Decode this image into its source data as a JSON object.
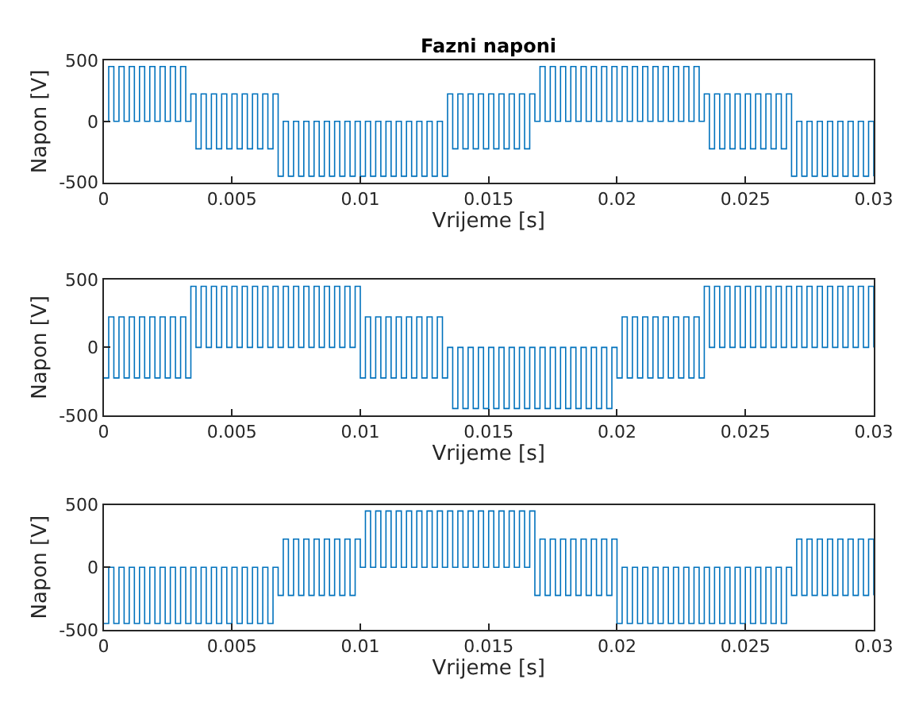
{
  "chart_data": [
    {
      "type": "step",
      "title": "Fazni naponi",
      "xlabel": "Vrijeme [s]",
      "ylabel": "Napon [V]",
      "xlim": [
        0,
        0.03
      ],
      "xticks": [
        0,
        0.005,
        0.01,
        0.015,
        0.02,
        0.025,
        0.03
      ],
      "ylim": [
        -500,
        500
      ],
      "yticks": [
        -500,
        0,
        500
      ],
      "x": [
        0,
        0.0002,
        0.0004,
        0.0006,
        0.0008,
        0.001,
        0.0012,
        0.0014,
        0.0016,
        0.0018,
        0.002,
        0.0022,
        0.0024,
        0.0026,
        0.0028,
        0.003,
        0.0032,
        0.0034,
        0.0036,
        0.0038,
        0.004,
        0.0042,
        0.0044,
        0.0046,
        0.0048,
        0.005,
        0.0052,
        0.0054,
        0.0056,
        0.0058,
        0.006,
        0.0062,
        0.0064,
        0.0066,
        0.0068,
        0.007,
        0.0072,
        0.0074,
        0.0076,
        0.0078,
        0.008,
        0.0082,
        0.0084,
        0.0086,
        0.0088,
        0.009,
        0.0092,
        0.0094,
        0.0096,
        0.0098,
        0.01,
        0.0102,
        0.0104,
        0.0106,
        0.0108,
        0.011,
        0.0112,
        0.0114,
        0.0116,
        0.0118,
        0.012,
        0.0122,
        0.0124,
        0.0126,
        0.0128,
        0.013,
        0.0132,
        0.0134,
        0.0136,
        0.0138,
        0.014,
        0.0142,
        0.0144,
        0.0146,
        0.0148,
        0.015,
        0.0152,
        0.0154,
        0.0156,
        0.0158,
        0.016,
        0.0162,
        0.0164,
        0.0166,
        0.0168,
        0.017,
        0.0172,
        0.0174,
        0.0176,
        0.0178,
        0.018,
        0.0182,
        0.0184,
        0.0186,
        0.0188,
        0.019,
        0.0192,
        0.0194,
        0.0196,
        0.0198,
        0.02,
        0.0202,
        0.0204,
        0.0206,
        0.0208,
        0.021,
        0.0212,
        0.0214,
        0.0216,
        0.0218,
        0.022,
        0.0222,
        0.0224,
        0.0226,
        0.0228,
        0.023,
        0.0232,
        0.0234,
        0.0236,
        0.0238,
        0.024,
        0.0242,
        0.0244,
        0.0246,
        0.0248,
        0.025,
        0.0252,
        0.0254,
        0.0256,
        0.0258,
        0.026,
        0.0262,
        0.0264,
        0.0266,
        0.0268,
        0.027,
        0.0272,
        0.0274,
        0.0276,
        0.0278,
        0.028,
        0.0282,
        0.0284,
        0.0286,
        0.0288,
        0.029,
        0.0292,
        0.0294,
        0.0296,
        0.0298,
        0.03
      ],
      "series": [
        {
          "color": "#0072bd",
          "values": [
            0,
            450,
            0,
            450,
            0,
            450,
            0,
            450,
            0,
            450,
            0,
            450,
            0,
            450,
            0,
            450,
            0,
            225,
            -225,
            225,
            -225,
            225,
            -225,
            225,
            -225,
            225,
            -225,
            225,
            -225,
            225,
            -225,
            225,
            -225,
            225,
            -450,
            0,
            -450,
            0,
            -450,
            0,
            -450,
            0,
            -450,
            0,
            -450,
            0,
            -450,
            0,
            -450,
            0,
            -450,
            0,
            -450,
            0,
            -450,
            0,
            -450,
            0,
            -450,
            0,
            -450,
            0,
            -450,
            0,
            -450,
            0,
            -450,
            225,
            -225,
            225,
            -225,
            225,
            -225,
            225,
            -225,
            225,
            -225,
            225,
            -225,
            225,
            -225,
            225,
            -225,
            225,
            0,
            450,
            0,
            450,
            0,
            450,
            0,
            450,
            0,
            450,
            0,
            450,
            0,
            450,
            0,
            450,
            0,
            450,
            0,
            450,
            0,
            450,
            0,
            450,
            0,
            450,
            0,
            450,
            0,
            450,
            0,
            450,
            0,
            225,
            -225,
            225,
            -225,
            225,
            -225,
            225,
            -225,
            225,
            -225,
            225,
            -225,
            225,
            -225,
            225,
            -225,
            225,
            -450,
            0,
            -450,
            0,
            -450,
            0,
            -450,
            0,
            -450,
            0,
            -450,
            0,
            -450,
            0,
            -450,
            0,
            -450
          ]
        }
      ]
    },
    {
      "type": "step",
      "xlabel": "Vrijeme [s]",
      "ylabel": "Napon [V]",
      "xlim": [
        0,
        0.03
      ],
      "xticks": [
        0,
        0.005,
        0.01,
        0.015,
        0.02,
        0.025,
        0.03
      ],
      "ylim": [
        -500,
        500
      ],
      "yticks": [
        -500,
        0,
        500
      ],
      "x": [
        0,
        0.0002,
        0.0004,
        0.0006,
        0.0008,
        0.001,
        0.0012,
        0.0014,
        0.0016,
        0.0018,
        0.002,
        0.0022,
        0.0024,
        0.0026,
        0.0028,
        0.003,
        0.0032,
        0.0034,
        0.0036,
        0.0038,
        0.004,
        0.0042,
        0.0044,
        0.0046,
        0.0048,
        0.005,
        0.0052,
        0.0054,
        0.0056,
        0.0058,
        0.006,
        0.0062,
        0.0064,
        0.0066,
        0.0068,
        0.007,
        0.0072,
        0.0074,
        0.0076,
        0.0078,
        0.008,
        0.0082,
        0.0084,
        0.0086,
        0.0088,
        0.009,
        0.0092,
        0.0094,
        0.0096,
        0.0098,
        0.01,
        0.0102,
        0.0104,
        0.0106,
        0.0108,
        0.011,
        0.0112,
        0.0114,
        0.0116,
        0.0118,
        0.012,
        0.0122,
        0.0124,
        0.0126,
        0.0128,
        0.013,
        0.0132,
        0.0134,
        0.0136,
        0.0138,
        0.014,
        0.0142,
        0.0144,
        0.0146,
        0.0148,
        0.015,
        0.0152,
        0.0154,
        0.0156,
        0.0158,
        0.016,
        0.0162,
        0.0164,
        0.0166,
        0.0168,
        0.017,
        0.0172,
        0.0174,
        0.0176,
        0.0178,
        0.018,
        0.0182,
        0.0184,
        0.0186,
        0.0188,
        0.019,
        0.0192,
        0.0194,
        0.0196,
        0.0198,
        0.02,
        0.0202,
        0.0204,
        0.0206,
        0.0208,
        0.021,
        0.0212,
        0.0214,
        0.0216,
        0.0218,
        0.022,
        0.0222,
        0.0224,
        0.0226,
        0.0228,
        0.023,
        0.0232,
        0.0234,
        0.0236,
        0.0238,
        0.024,
        0.0242,
        0.0244,
        0.0246,
        0.0248,
        0.025,
        0.0252,
        0.0254,
        0.0256,
        0.0258,
        0.026,
        0.0262,
        0.0264,
        0.0266,
        0.0268,
        0.027,
        0.0272,
        0.0274,
        0.0276,
        0.0278,
        0.028,
        0.0282,
        0.0284,
        0.0286,
        0.0288,
        0.029,
        0.0292,
        0.0294,
        0.0296,
        0.0298,
        0.03
      ],
      "series": [
        {
          "color": "#0072bd",
          "values": [
            -225,
            225,
            -225,
            225,
            -225,
            225,
            -225,
            225,
            -225,
            225,
            -225,
            225,
            -225,
            225,
            -225,
            225,
            -225,
            450,
            0,
            450,
            0,
            450,
            0,
            450,
            0,
            450,
            0,
            450,
            0,
            450,
            0,
            450,
            0,
            450,
            0,
            450,
            0,
            450,
            0,
            450,
            0,
            450,
            0,
            450,
            0,
            450,
            0,
            450,
            0,
            450,
            -225,
            225,
            -225,
            225,
            -225,
            225,
            -225,
            225,
            -225,
            225,
            -225,
            225,
            -225,
            225,
            -225,
            225,
            -225,
            0,
            -450,
            0,
            -450,
            0,
            -450,
            0,
            -450,
            0,
            -450,
            0,
            -450,
            0,
            -450,
            0,
            -450,
            0,
            -450,
            0,
            -450,
            0,
            -450,
            0,
            -450,
            0,
            -450,
            0,
            -450,
            0,
            -450,
            0,
            -450,
            0,
            -225,
            225,
            -225,
            225,
            -225,
            225,
            -225,
            225,
            -225,
            225,
            -225,
            225,
            -225,
            225,
            -225,
            225,
            -225,
            450,
            0,
            450,
            0,
            450,
            0,
            450,
            0,
            450,
            0,
            450,
            0,
            450,
            0,
            450,
            0,
            450,
            0,
            450,
            0,
            450,
            0,
            450,
            0,
            450,
            0,
            450,
            0,
            450,
            0,
            450,
            0,
            450,
            0
          ]
        }
      ]
    },
    {
      "type": "step",
      "xlabel": "Vrijeme [s]",
      "ylabel": "Napon [V]",
      "xlim": [
        0,
        0.03
      ],
      "xticks": [
        0,
        0.005,
        0.01,
        0.015,
        0.02,
        0.025,
        0.03
      ],
      "ylim": [
        -500,
        500
      ],
      "yticks": [
        -500,
        0,
        500
      ],
      "x": [
        0,
        0.0002,
        0.0004,
        0.0006,
        0.0008,
        0.001,
        0.0012,
        0.0014,
        0.0016,
        0.0018,
        0.002,
        0.0022,
        0.0024,
        0.0026,
        0.0028,
        0.003,
        0.0032,
        0.0034,
        0.0036,
        0.0038,
        0.004,
        0.0042,
        0.0044,
        0.0046,
        0.0048,
        0.005,
        0.0052,
        0.0054,
        0.0056,
        0.0058,
        0.006,
        0.0062,
        0.0064,
        0.0066,
        0.0068,
        0.007,
        0.0072,
        0.0074,
        0.0076,
        0.0078,
        0.008,
        0.0082,
        0.0084,
        0.0086,
        0.0088,
        0.009,
        0.0092,
        0.0094,
        0.0096,
        0.0098,
        0.01,
        0.0102,
        0.0104,
        0.0106,
        0.0108,
        0.011,
        0.0112,
        0.0114,
        0.0116,
        0.0118,
        0.012,
        0.0122,
        0.0124,
        0.0126,
        0.0128,
        0.013,
        0.0132,
        0.0134,
        0.0136,
        0.0138,
        0.014,
        0.0142,
        0.0144,
        0.0146,
        0.0148,
        0.015,
        0.0152,
        0.0154,
        0.0156,
        0.0158,
        0.016,
        0.0162,
        0.0164,
        0.0166,
        0.0168,
        0.017,
        0.0172,
        0.0174,
        0.0176,
        0.0178,
        0.018,
        0.0182,
        0.0184,
        0.0186,
        0.0188,
        0.019,
        0.0192,
        0.0194,
        0.0196,
        0.0198,
        0.02,
        0.0202,
        0.0204,
        0.0206,
        0.0208,
        0.021,
        0.0212,
        0.0214,
        0.0216,
        0.0218,
        0.022,
        0.0222,
        0.0224,
        0.0226,
        0.0228,
        0.023,
        0.0232,
        0.0234,
        0.0236,
        0.0238,
        0.024,
        0.0242,
        0.0244,
        0.0246,
        0.0248,
        0.025,
        0.0252,
        0.0254,
        0.0256,
        0.0258,
        0.026,
        0.0262,
        0.0264,
        0.0266,
        0.0268,
        0.027,
        0.0272,
        0.0274,
        0.0276,
        0.0278,
        0.028,
        0.0282,
        0.0284,
        0.0286,
        0.0288,
        0.029,
        0.0292,
        0.0294,
        0.0296,
        0.0298,
        0.03
      ],
      "series": [
        {
          "color": "#0072bd",
          "values": [
            -450,
            0,
            -450,
            0,
            -450,
            0,
            -450,
            0,
            -450,
            0,
            -450,
            0,
            -450,
            0,
            -450,
            0,
            -450,
            0,
            -450,
            0,
            -450,
            0,
            -450,
            0,
            -450,
            0,
            -450,
            0,
            -450,
            0,
            -450,
            0,
            -450,
            0,
            -225,
            225,
            -225,
            225,
            -225,
            225,
            -225,
            225,
            -225,
            225,
            -225,
            225,
            -225,
            225,
            -225,
            225,
            0,
            450,
            0,
            450,
            0,
            450,
            0,
            450,
            0,
            450,
            0,
            450,
            0,
            450,
            0,
            450,
            0,
            450,
            0,
            450,
            0,
            450,
            0,
            450,
            0,
            450,
            0,
            450,
            0,
            450,
            0,
            450,
            0,
            450,
            -225,
            225,
            -225,
            225,
            -225,
            225,
            -225,
            225,
            -225,
            225,
            -225,
            225,
            -225,
            225,
            -225,
            225,
            -450,
            0,
            -450,
            0,
            -450,
            0,
            -450,
            0,
            -450,
            0,
            -450,
            0,
            -450,
            0,
            -450,
            0,
            -450,
            0,
            -450,
            0,
            -450,
            0,
            -450,
            0,
            -450,
            0,
            -450,
            0,
            -450,
            0,
            -450,
            0,
            -450,
            0,
            -225,
            225,
            -225,
            225,
            -225,
            225,
            -225,
            225,
            -225,
            225,
            -225,
            225,
            -225,
            225,
            -225,
            225,
            -225
          ]
        }
      ]
    }
  ]
}
